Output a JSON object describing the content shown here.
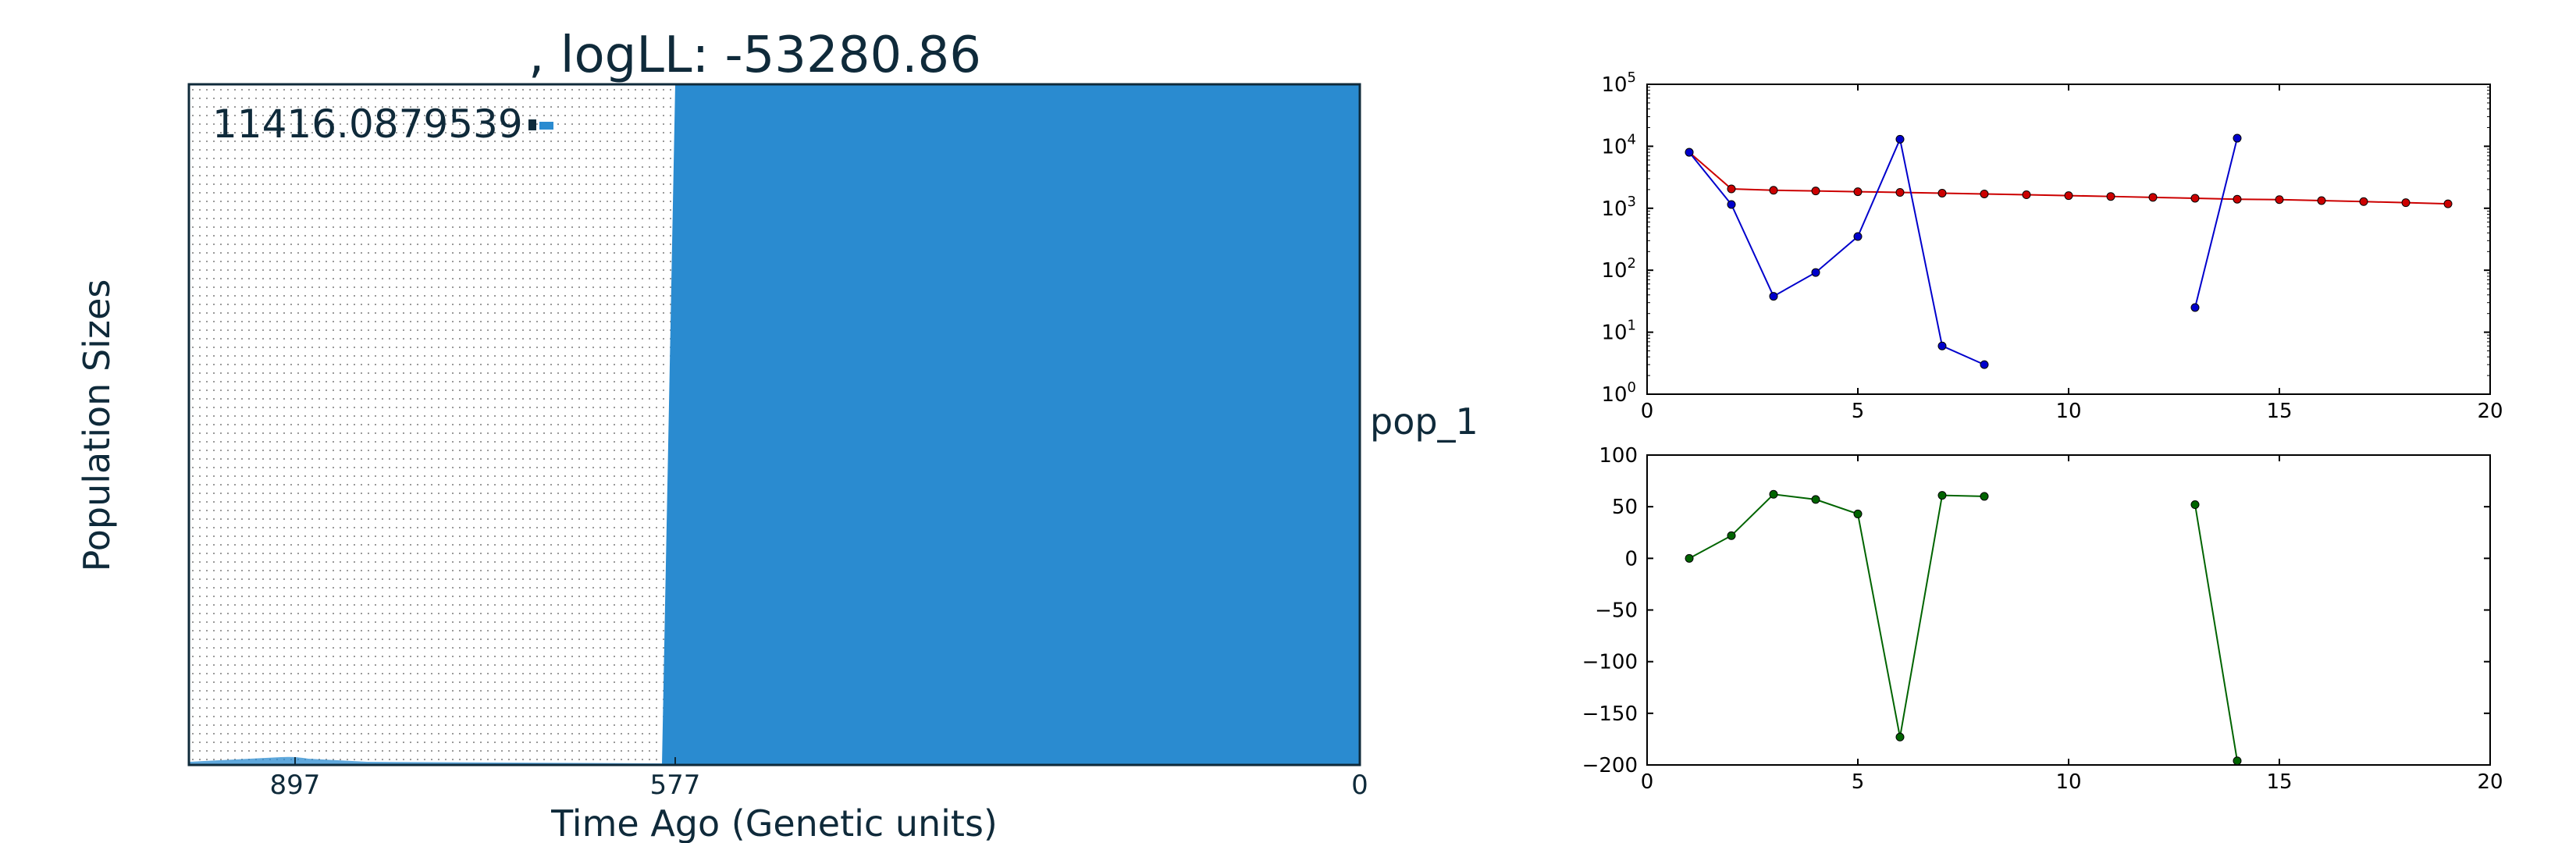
{
  "chart_data": [
    {
      "type": "area",
      "title": ", logLL:  -53280.86",
      "xlabel": "Time Ago (Genetic units)",
      "ylabel": "Population Sizes",
      "x_ticks": [
        "897",
        "577",
        "0"
      ],
      "size_label": "11416.0879539",
      "population_label": "pop_1",
      "x_range": [
        1227,
        0
      ],
      "events": [
        {
          "label": "577",
          "time": 577
        },
        {
          "label": "897",
          "time": 897
        }
      ],
      "colors": {
        "population": "#2a8bd0",
        "frame": "#0f2a3a"
      }
    },
    {
      "type": "line",
      "yscale": "log",
      "xlim": [
        0,
        20
      ],
      "ylim": [
        1,
        100000
      ],
      "x_ticks": [
        0,
        5,
        10,
        15,
        20
      ],
      "y_tick_exponents": [
        0,
        1,
        2,
        3,
        4,
        5
      ],
      "series": [
        {
          "color": "#cc0000",
          "points": [
            [
              1,
              8000
            ],
            [
              2,
              2050
            ],
            [
              3,
              1950
            ],
            [
              4,
              1900
            ],
            [
              5,
              1850
            ],
            [
              6,
              1800
            ],
            [
              7,
              1750
            ],
            [
              8,
              1700
            ],
            [
              9,
              1650
            ],
            [
              10,
              1600
            ],
            [
              11,
              1550
            ],
            [
              12,
              1500
            ],
            [
              13,
              1450
            ],
            [
              14,
              1400
            ],
            [
              15,
              1380
            ],
            [
              16,
              1330
            ],
            [
              17,
              1280
            ],
            [
              18,
              1230
            ],
            [
              19,
              1180
            ]
          ]
        },
        {
          "color": "#0000cc",
          "segments": [
            [
              [
                1,
                8000
              ],
              [
                2,
                1150
              ],
              [
                3,
                38
              ],
              [
                4,
                92
              ],
              [
                5,
                350
              ],
              [
                6,
                13000
              ],
              [
                7,
                6
              ],
              [
                8,
                3
              ]
            ],
            [
              [
                13,
                25
              ],
              [
                14,
                13500
              ]
            ]
          ]
        }
      ]
    },
    {
      "type": "line",
      "xlim": [
        0,
        20
      ],
      "ylim": [
        -200,
        100
      ],
      "x_ticks": [
        0,
        5,
        10,
        15,
        20
      ],
      "y_ticks": [
        100,
        50,
        0,
        -50,
        -100,
        -150,
        -200
      ],
      "series": [
        {
          "color": "#006400",
          "segments": [
            [
              [
                1,
                0
              ],
              [
                2,
                22
              ],
              [
                3,
                62
              ],
              [
                4,
                57
              ],
              [
                5,
                43
              ],
              [
                6,
                -173
              ],
              [
                7,
                61
              ],
              [
                8,
                60
              ]
            ],
            [
              [
                13,
                52
              ],
              [
                14,
                -196
              ]
            ]
          ]
        }
      ]
    }
  ]
}
